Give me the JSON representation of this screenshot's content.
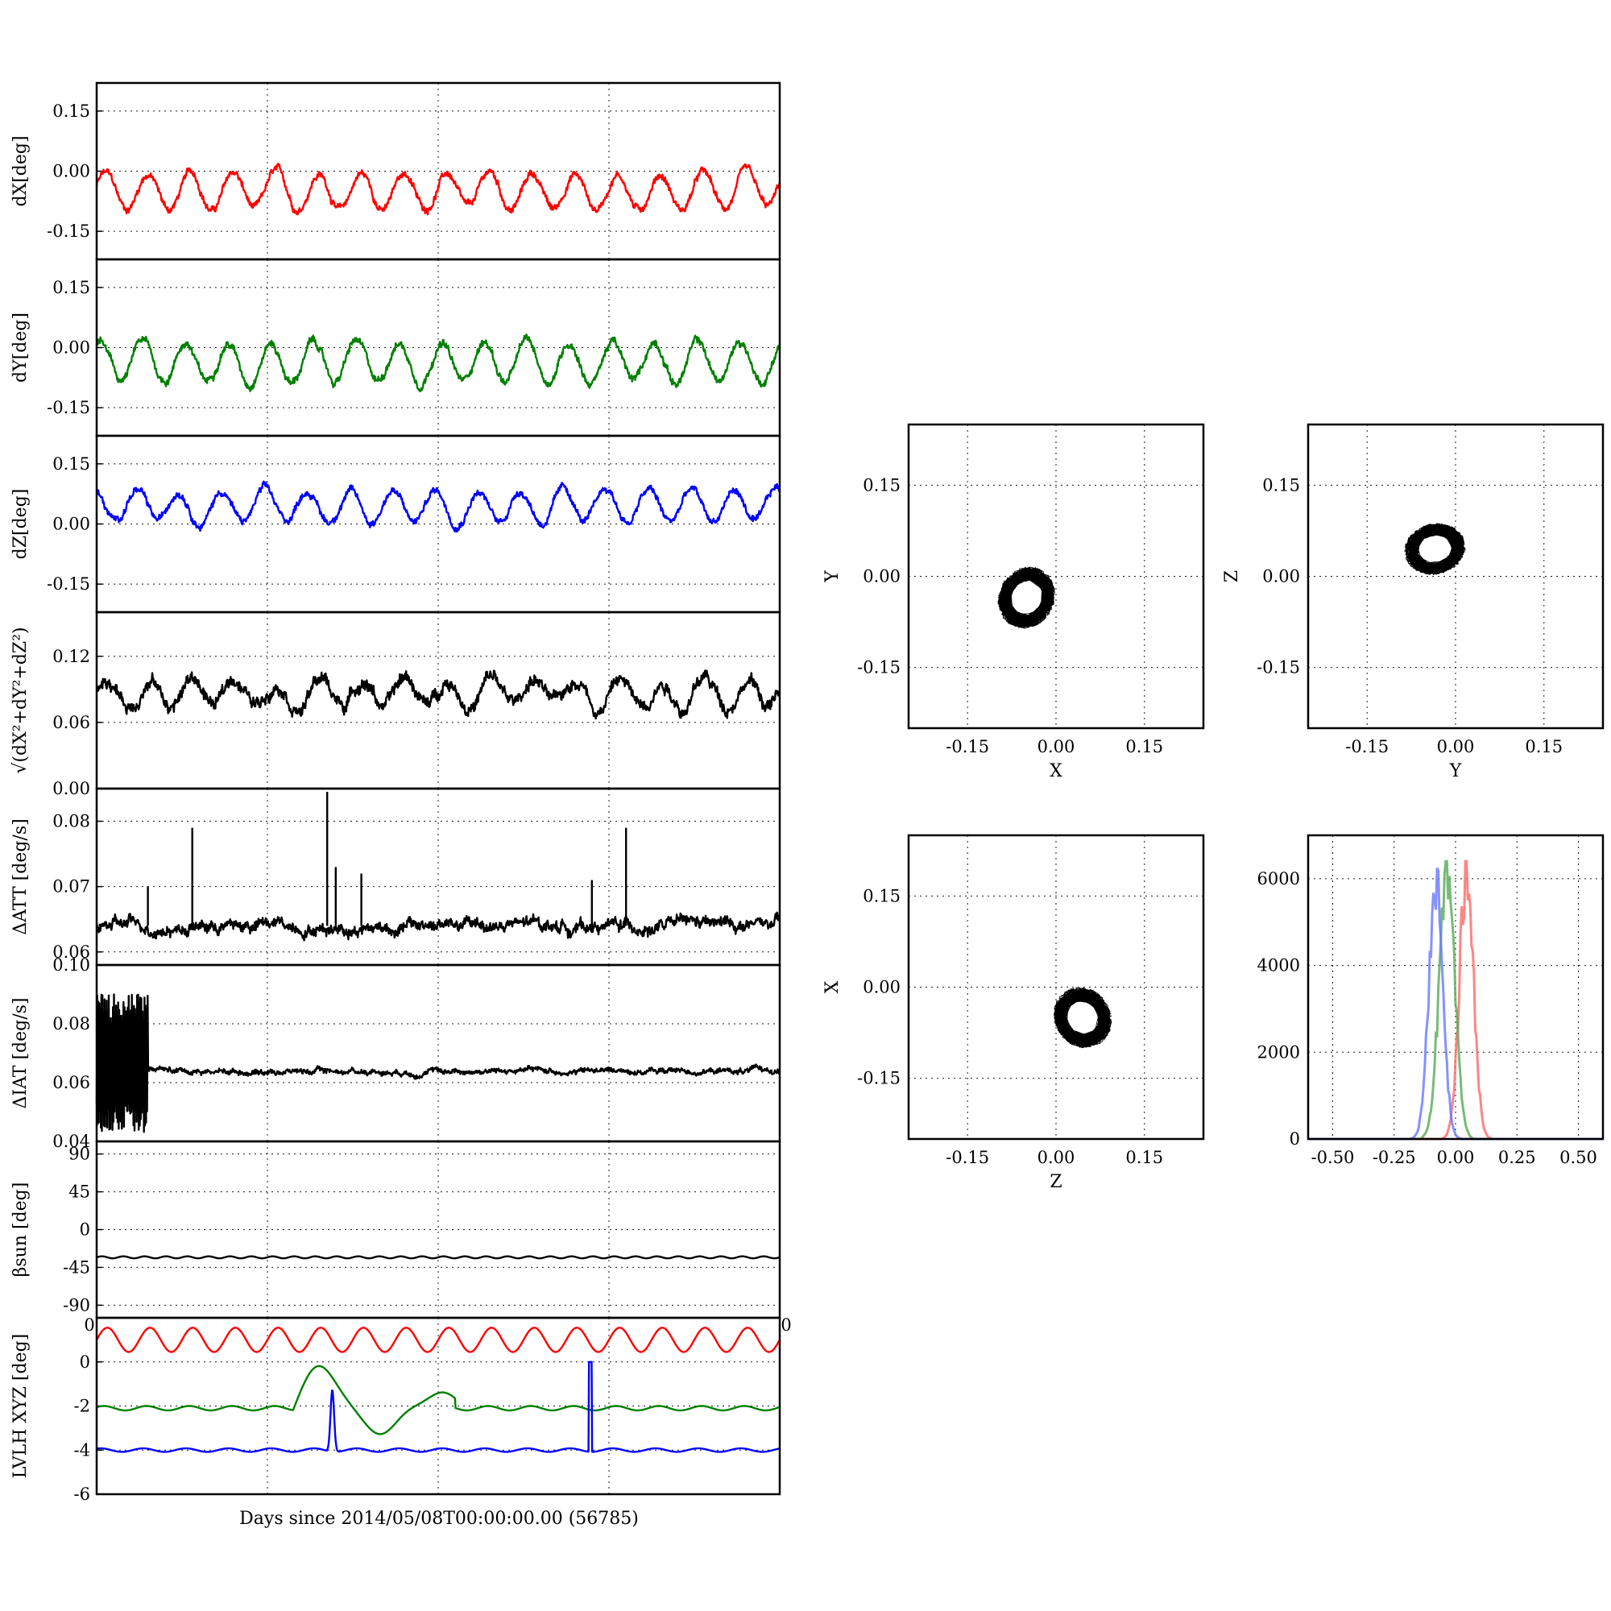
{
  "figure": {
    "x_axis_label": "Days since 2014/05/08T00:00:00.00 (56785)",
    "panel_edge_tick_text": "0"
  },
  "chart_data": [
    {
      "type": "line",
      "ylabel": "dX[deg]",
      "ylim": [
        -0.22,
        0.22
      ],
      "yticks": [
        "0.15",
        "0.00",
        "-0.15"
      ],
      "ytick_values": [
        0.15,
        0.0,
        -0.15
      ],
      "xlim": [
        0,
        4
      ],
      "grid": true,
      "series": [
        {
          "color": "#ff0000",
          "base": -0.05,
          "amp": 0.045,
          "cycles": 16,
          "noise": 0.012,
          "phase": 0.3
        }
      ]
    },
    {
      "type": "line",
      "ylabel": "dY[deg]",
      "ylim": [
        -0.22,
        0.22
      ],
      "yticks": [
        "0.15",
        "0.00",
        "-0.15"
      ],
      "ytick_values": [
        0.15,
        0.0,
        -0.15
      ],
      "xlim": [
        0,
        4
      ],
      "grid": true,
      "series": [
        {
          "color": "#008000",
          "base": -0.035,
          "amp": 0.05,
          "cycles": 16,
          "noise": 0.013,
          "phase": 1.1
        }
      ]
    },
    {
      "type": "line",
      "ylabel": "dZ[deg]",
      "ylim": [
        -0.22,
        0.22
      ],
      "yticks": [
        "0.15",
        "0.00",
        "-0.15"
      ],
      "ytick_values": [
        0.15,
        0.0,
        -0.15
      ],
      "xlim": [
        0,
        4
      ],
      "grid": true,
      "series": [
        {
          "color": "#0000ff",
          "base": 0.045,
          "amp": 0.04,
          "cycles": 16,
          "noise": 0.012,
          "phase": 2.0
        }
      ]
    },
    {
      "type": "line",
      "ylabel_html": "√(dX²+dY²+dZ²)",
      "ylim": [
        0.0,
        0.16
      ],
      "yticks": [
        "0.12",
        "0.06",
        "0.00"
      ],
      "ytick_values": [
        0.12,
        0.06,
        0.0
      ],
      "xlim": [
        0,
        4
      ],
      "grid": true,
      "series": [
        {
          "color": "#000000",
          "base": 0.088,
          "amp": 0.012,
          "cycles": 16,
          "noise": 0.008,
          "phase": 0.0
        }
      ]
    },
    {
      "type": "line",
      "ylabel": "ΔATT [deg/s]",
      "ylim": [
        0.058,
        0.085
      ],
      "yticks": [
        "0.08",
        "0.07",
        "0.06"
      ],
      "ytick_values": [
        0.08,
        0.07,
        0.06
      ],
      "xlim": [
        0,
        4
      ],
      "grid": true,
      "series": [
        {
          "color": "#000000",
          "base": 0.064,
          "amp": 0.0,
          "cycles": 0,
          "noise": 0.0012,
          "phase": 0.0
        }
      ],
      "spikes": [
        [
          0.3,
          0.07
        ],
        [
          0.56,
          0.079
        ],
        [
          1.35,
          0.0845
        ],
        [
          1.4,
          0.073
        ],
        [
          1.55,
          0.072
        ],
        [
          3.1,
          0.079
        ],
        [
          2.9,
          0.071
        ]
      ]
    },
    {
      "type": "line",
      "ylabel": "ΔIAT [deg/s]",
      "ylim": [
        0.04,
        0.1
      ],
      "yticks": [
        "0.10",
        "0.08",
        "0.06",
        "0.04"
      ],
      "ytick_values": [
        0.1,
        0.08,
        0.06,
        0.04
      ],
      "xlim": [
        0,
        4
      ],
      "grid": true,
      "series": [
        {
          "color": "#000000",
          "base": 0.064,
          "amp": 0.0,
          "cycles": 0,
          "noise": 0.0012,
          "phase": 0.0
        }
      ],
      "burst": {
        "x0": 0.0,
        "x1": 0.3,
        "lo": 0.043,
        "hi": 0.09
      }
    },
    {
      "type": "line",
      "ylabel_html": "βsun [deg]",
      "ylim": [
        -105,
        105
      ],
      "yticks": [
        "90",
        "45",
        "0",
        "-45",
        "-90"
      ],
      "ytick_values": [
        90,
        45,
        0,
        -45,
        -90
      ],
      "xlim": [
        0,
        4
      ],
      "grid": true,
      "series": [
        {
          "color": "#000000",
          "base": -33,
          "amp": 1.2,
          "cycles": 32,
          "noise": 0.0,
          "phase": 0.0
        }
      ]
    },
    {
      "type": "line",
      "ylabel": "LVLH XYZ [deg]",
      "ylim": [
        -6,
        2
      ],
      "yticks": [
        "0",
        "-2",
        "-4",
        "-6"
      ],
      "ytick_values": [
        0,
        -2,
        -4,
        -6
      ],
      "xlim": [
        0,
        4
      ],
      "grid": true,
      "series": [
        {
          "color": "#ff0000",
          "base": 1.0,
          "amp": 0.55,
          "cycles": 16,
          "noise": 0.0,
          "phase": 0.0
        },
        {
          "color": "#008000",
          "base": -2.1,
          "amp": 0.1,
          "cycles": 16,
          "noise": 0.0,
          "phase": 0.5
        },
        {
          "color": "#0000ff",
          "base": -4.0,
          "amp": 0.08,
          "cycles": 16,
          "noise": 0.0,
          "phase": 1.0
        }
      ]
    },
    {
      "type": "scatter",
      "xlabel": "X",
      "ylabel": "Y",
      "xlim": [
        -0.25,
        0.25
      ],
      "ylim": [
        -0.25,
        0.25
      ],
      "ticks": [
        "-0.15",
        "0.00",
        "0.15"
      ],
      "tick_values": [
        -0.15,
        0.0,
        0.15
      ],
      "grid": true,
      "center": [
        -0.05,
        -0.035
      ],
      "radius": [
        0.045,
        0.05
      ],
      "tilt": -0.6
    },
    {
      "type": "scatter",
      "xlabel": "Y",
      "ylabel": "Z",
      "xlim": [
        -0.25,
        0.25
      ],
      "ylim": [
        -0.25,
        0.25
      ],
      "ticks": [
        "-0.15",
        "0.00",
        "0.15"
      ],
      "tick_values": [
        -0.15,
        0.0,
        0.15
      ],
      "grid": true,
      "center": [
        -0.035,
        0.045
      ],
      "radius": [
        0.05,
        0.04
      ],
      "tilt": 0.2
    },
    {
      "type": "scatter",
      "xlabel": "Z",
      "ylabel": "X",
      "xlim": [
        -0.25,
        0.25
      ],
      "ylim": [
        -0.25,
        0.25
      ],
      "ticks": [
        "-0.15",
        "0.00",
        "0.15"
      ],
      "tick_values": [
        -0.15,
        0.0,
        0.15
      ],
      "grid": true,
      "center": [
        0.045,
        -0.05
      ],
      "radius": [
        0.045,
        0.05
      ],
      "tilt": 0.7
    },
    {
      "type": "line",
      "xlim": [
        -0.6,
        0.6
      ],
      "ylim": [
        0,
        7000
      ],
      "xticks": [
        "-0.50",
        "-0.25",
        "0.00",
        "0.25",
        "0.50"
      ],
      "xtick_values": [
        -0.5,
        -0.25,
        0.0,
        0.25,
        0.5
      ],
      "yticks": [
        "6000",
        "4000",
        "2000",
        "0"
      ],
      "ytick_values": [
        6000,
        4000,
        2000,
        0
      ],
      "grid": true,
      "series": [
        {
          "color": "#ff6666",
          "center": 0.045,
          "width": 0.04,
          "peak": 6200
        },
        {
          "color": "#55aa55",
          "center": -0.035,
          "width": 0.045,
          "peak": 5900
        },
        {
          "color": "#6677ff",
          "center": 0.045,
          "width": 0.04,
          "peak": 0,
          "mirror_center": -0.08,
          "mirror_peak": 6000
        }
      ]
    }
  ]
}
